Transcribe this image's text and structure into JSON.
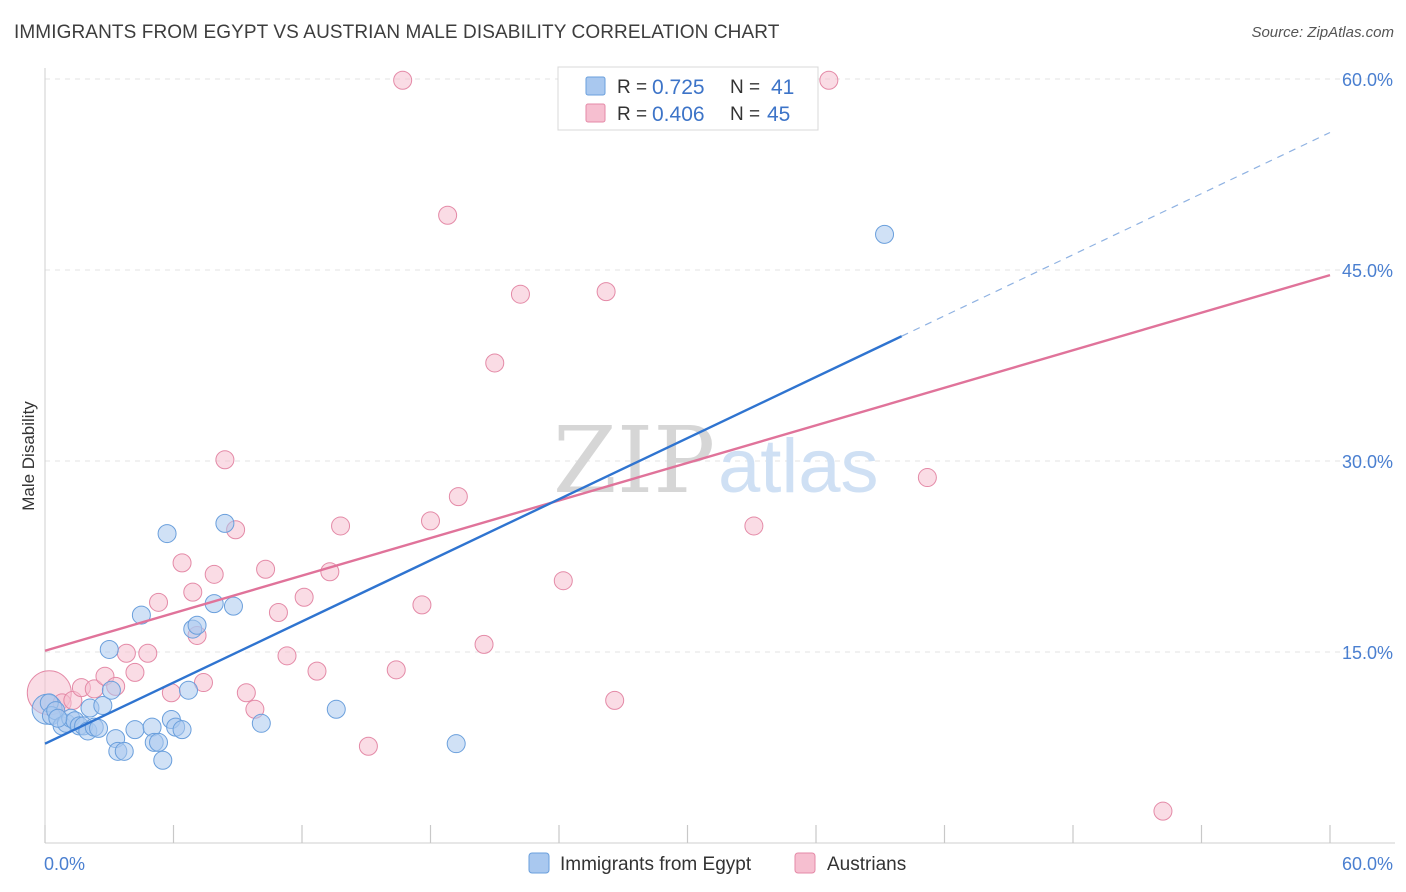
{
  "header": {
    "title": "IMMIGRANTS FROM EGYPT VS AUSTRIAN MALE DISABILITY CORRELATION CHART",
    "source": "Source: ZipAtlas.com"
  },
  "watermark": {
    "zip": "ZIP",
    "atlas": "atlas"
  },
  "colors": {
    "egypt_fill": "#a9c8ef",
    "egypt_stroke": "#6a9fdc",
    "egypt_line": "#2f74d0",
    "austria_fill": "#f6bfd0",
    "austria_stroke": "#e48aa7",
    "austria_line": "#e0739a",
    "tick_label": "#4a7fd0",
    "grid": "#e3e3e3"
  },
  "legend": {
    "rows": [
      {
        "r_label": "R =",
        "r_value": "0.725",
        "n_label": "N =",
        "n_value": "41"
      },
      {
        "r_label": "R =",
        "r_value": "0.406",
        "n_label": "N =",
        "n_value": "45"
      }
    ]
  },
  "chart_data": {
    "type": "scatter",
    "title": "IMMIGRANTS FROM EGYPT VS AUSTRIAN MALE DISABILITY CORRELATION CHART",
    "xlabel": "",
    "ylabel": "Male Disability",
    "xlim": [
      0,
      60
    ],
    "ylim": [
      0,
      60
    ],
    "x_tick_labels": [
      "0.0%",
      "60.0%"
    ],
    "y_ticks": [
      15,
      30,
      45,
      60
    ],
    "y_tick_labels": [
      "15.0%",
      "30.0%",
      "45.0%",
      "60.0%"
    ],
    "grid": true,
    "legend_position": "top-center",
    "series": [
      {
        "name": "Immigrants from Egypt",
        "R": 0.725,
        "N": 41,
        "trend": {
          "x0": 0,
          "y0": 7.8,
          "x1": 40,
          "y1": 39.8,
          "dashed_to_x": 60,
          "dashed_to_y": 55.8
        },
        "points": [
          [
            0.1,
            10.5
          ],
          [
            0.2,
            11.0
          ],
          [
            0.3,
            10.0
          ],
          [
            0.5,
            10.4
          ],
          [
            0.8,
            9.2
          ],
          [
            1.0,
            9.4
          ],
          [
            1.2,
            9.8
          ],
          [
            1.4,
            9.6
          ],
          [
            1.6,
            9.2
          ],
          [
            1.8,
            9.2
          ],
          [
            2.0,
            8.8
          ],
          [
            2.1,
            10.6
          ],
          [
            2.3,
            9.1
          ],
          [
            2.5,
            9.0
          ],
          [
            2.7,
            10.8
          ],
          [
            3.0,
            15.2
          ],
          [
            3.1,
            12.0
          ],
          [
            3.3,
            8.2
          ],
          [
            3.4,
            7.2
          ],
          [
            3.7,
            7.2
          ],
          [
            4.2,
            8.9
          ],
          [
            4.5,
            17.9
          ],
          [
            5.0,
            9.1
          ],
          [
            5.1,
            7.9
          ],
          [
            5.3,
            7.9
          ],
          [
            5.5,
            6.5
          ],
          [
            5.7,
            24.3
          ],
          [
            5.9,
            9.7
          ],
          [
            6.1,
            9.1
          ],
          [
            6.4,
            8.9
          ],
          [
            6.7,
            12.0
          ],
          [
            6.9,
            16.8
          ],
          [
            7.1,
            17.1
          ],
          [
            7.9,
            18.8
          ],
          [
            8.4,
            25.1
          ],
          [
            8.8,
            18.6
          ],
          [
            10.1,
            9.4
          ],
          [
            13.6,
            10.5
          ],
          [
            19.2,
            7.8
          ],
          [
            39.2,
            47.8
          ],
          [
            0.6,
            9.8
          ]
        ]
      },
      {
        "name": "Austrians",
        "R": 0.406,
        "N": 45,
        "trend": {
          "x0": 0,
          "y0": 15.1,
          "x1": 60,
          "y1": 44.6
        },
        "points": [
          [
            0.2,
            11.8
          ],
          [
            0.8,
            11.0
          ],
          [
            1.3,
            11.2
          ],
          [
            1.7,
            12.2
          ],
          [
            2.3,
            12.1
          ],
          [
            2.8,
            13.1
          ],
          [
            3.3,
            12.3
          ],
          [
            3.8,
            14.9
          ],
          [
            4.2,
            13.4
          ],
          [
            4.8,
            14.9
          ],
          [
            5.3,
            18.9
          ],
          [
            5.9,
            11.8
          ],
          [
            6.4,
            22.0
          ],
          [
            6.9,
            19.7
          ],
          [
            7.4,
            12.6
          ],
          [
            7.9,
            21.1
          ],
          [
            8.4,
            30.1
          ],
          [
            8.9,
            24.6
          ],
          [
            9.4,
            11.8
          ],
          [
            9.8,
            10.5
          ],
          [
            10.3,
            21.5
          ],
          [
            10.9,
            18.1
          ],
          [
            11.3,
            14.7
          ],
          [
            12.1,
            19.3
          ],
          [
            12.7,
            13.5
          ],
          [
            13.3,
            21.3
          ],
          [
            13.8,
            24.9
          ],
          [
            15.1,
            7.6
          ],
          [
            16.4,
            13.6
          ],
          [
            16.7,
            59.9
          ],
          [
            17.6,
            18.7
          ],
          [
            18.0,
            25.3
          ],
          [
            18.8,
            49.3
          ],
          [
            19.3,
            27.2
          ],
          [
            20.5,
            15.6
          ],
          [
            21.0,
            37.7
          ],
          [
            22.2,
            43.1
          ],
          [
            24.2,
            20.6
          ],
          [
            26.2,
            43.3
          ],
          [
            26.6,
            11.2
          ],
          [
            33.1,
            24.9
          ],
          [
            36.6,
            59.9
          ],
          [
            41.2,
            28.7
          ],
          [
            52.2,
            2.5
          ],
          [
            7.1,
            16.3
          ]
        ]
      }
    ]
  }
}
